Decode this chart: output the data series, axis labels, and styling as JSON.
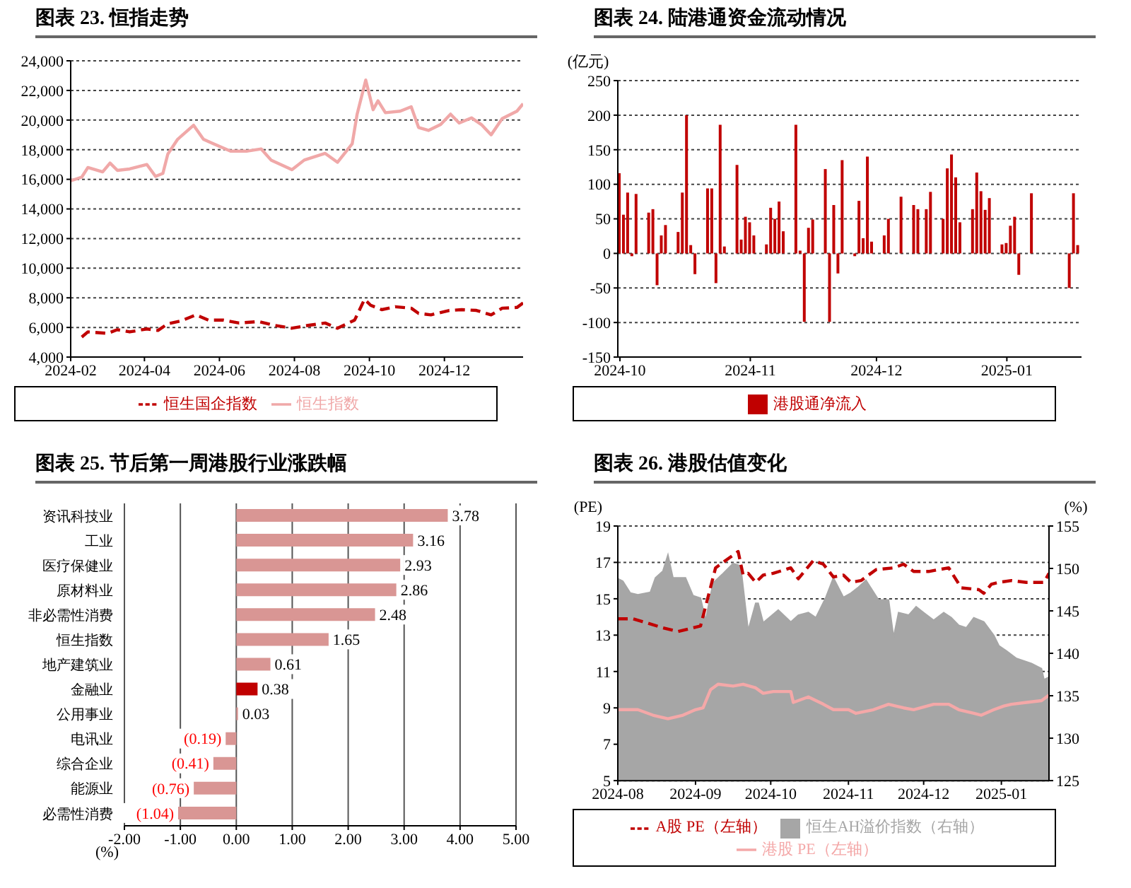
{
  "chart_data": [
    {
      "type": "line",
      "title": "图表 23. 恒指走势",
      "xlim": [
        "2024-02-01",
        "2025-02-03"
      ],
      "xticks": [
        {
          "value": "2024-02-01",
          "label": "2024-02"
        },
        {
          "value": "2024-04-01",
          "label": "2024-04"
        },
        {
          "value": "2024-06-01",
          "label": "2024-06"
        },
        {
          "value": "2024-08-01",
          "label": "2024-08"
        },
        {
          "value": "2024-10-01",
          "label": "2024-10"
        },
        {
          "value": "2024-12-01",
          "label": "2024-12"
        }
      ],
      "ylim": [
        4000,
        24000
      ],
      "yticks": [
        {
          "value": 4000,
          "label": "4,000"
        },
        {
          "value": 6000,
          "label": "6,000"
        },
        {
          "value": 8000,
          "label": "8,000"
        },
        {
          "value": 10000,
          "label": "10,000"
        },
        {
          "value": 12000,
          "label": "12,000"
        },
        {
          "value": 14000,
          "label": "14,000"
        },
        {
          "value": 16000,
          "label": "16,000"
        },
        {
          "value": 18000,
          "label": "18,000"
        },
        {
          "value": 20000,
          "label": "20,000"
        },
        {
          "value": 22000,
          "label": "22,000"
        },
        {
          "value": 24000,
          "label": "24,000"
        }
      ],
      "grid": "y",
      "legend": "bottom",
      "marker": "none",
      "series": [
        {
          "name": "恒生国企指数",
          "color": "#c00000",
          "line_style": "dashed",
          "x": [
            "2024-02-10",
            "2024-02-15",
            "2024-03-02",
            "2024-03-10",
            "2024-03-20",
            "2024-04-03",
            "2024-04-12",
            "2024-04-20",
            "2024-05-01",
            "2024-05-13",
            "2024-05-23",
            "2024-06-04",
            "2024-06-17",
            "2024-07-03",
            "2024-07-15",
            "2024-07-30",
            "2024-08-13",
            "2024-08-26",
            "2024-09-05",
            "2024-09-19",
            "2024-09-27",
            "2024-10-02",
            "2024-10-11",
            "2024-10-22",
            "2024-11-04",
            "2024-11-10",
            "2024-11-20",
            "2024-12-05",
            "2024-12-15",
            "2024-12-27",
            "2025-01-08",
            "2025-01-17",
            "2025-01-29",
            "2025-02-03"
          ],
          "values": [
            5350,
            5700,
            5600,
            5850,
            5700,
            5900,
            5800,
            6250,
            6450,
            6850,
            6500,
            6500,
            6300,
            6400,
            6150,
            5950,
            6150,
            6300,
            5950,
            6500,
            7900,
            7500,
            7200,
            7400,
            7300,
            6950,
            6850,
            7150,
            7200,
            7150,
            6850,
            7300,
            7350,
            7650
          ]
        },
        {
          "name": "恒生指数",
          "color": "#f0a8a8",
          "line_style": "solid",
          "x": [
            "2024-02-01",
            "2024-02-10",
            "2024-02-15",
            "2024-02-27",
            "2024-03-04",
            "2024-03-10",
            "2024-03-20",
            "2024-04-03",
            "2024-04-10",
            "2024-04-16",
            "2024-04-20",
            "2024-04-28",
            "2024-05-11",
            "2024-05-19",
            "2024-05-27",
            "2024-06-10",
            "2024-06-23",
            "2024-07-05",
            "2024-07-13",
            "2024-07-30",
            "2024-08-09",
            "2024-08-26",
            "2024-09-05",
            "2024-09-17",
            "2024-09-21",
            "2024-09-28",
            "2024-10-04",
            "2024-10-08",
            "2024-10-14",
            "2024-10-26",
            "2024-11-04",
            "2024-11-10",
            "2024-11-18",
            "2024-11-28",
            "2024-12-06",
            "2024-12-13",
            "2024-12-23",
            "2024-12-31",
            "2025-01-08",
            "2025-01-17",
            "2025-01-29",
            "2025-02-03"
          ],
          "values": [
            15900,
            16150,
            16800,
            16500,
            17100,
            16600,
            16700,
            17000,
            16200,
            16400,
            17700,
            18700,
            19650,
            18700,
            18400,
            17900,
            17900,
            18050,
            17300,
            16650,
            17300,
            17750,
            17150,
            18400,
            20400,
            22700,
            20700,
            21300,
            20500,
            20600,
            20900,
            19500,
            19300,
            19700,
            20400,
            19800,
            20150,
            19700,
            19000,
            20100,
            20600,
            21100
          ]
        }
      ]
    },
    {
      "type": "bar",
      "title": "图表 24. 陆港通资金流动情况",
      "ylabel": "(亿元)",
      "xlim": [
        "2024-09-30T12:00",
        "2025-01-18T18:00"
      ],
      "xticks": [
        {
          "value": "2024-10-01",
          "label": "2024-10"
        },
        {
          "value": "2024-11-01",
          "label": "2024-11"
        },
        {
          "value": "2024-12-01",
          "label": "2024-12"
        },
        {
          "value": "2025-01-01",
          "label": "2025-01"
        }
      ],
      "ylim": [
        -150,
        250
      ],
      "yticks": [
        -150,
        -100,
        -50,
        0,
        50,
        100,
        150,
        200,
        250
      ],
      "grid": "y",
      "legend": "bottom",
      "x": [
        "2024-10-01",
        "2024-10-02",
        "2024-10-03",
        "2024-10-04",
        "2024-10-05",
        "2024-10-08",
        "2024-10-09",
        "2024-10-10",
        "2024-10-11",
        "2024-10-12",
        "2024-10-15",
        "2024-10-16",
        "2024-10-17",
        "2024-10-18",
        "2024-10-19",
        "2024-10-22",
        "2024-10-23",
        "2024-10-24",
        "2024-10-25",
        "2024-10-26",
        "2024-10-29",
        "2024-10-30",
        "2024-10-31",
        "2024-11-01",
        "2024-11-02",
        "2024-11-05",
        "2024-11-06",
        "2024-11-07",
        "2024-11-08",
        "2024-11-09",
        "2024-11-12",
        "2024-11-13",
        "2024-11-14",
        "2024-11-15",
        "2024-11-16",
        "2024-11-19",
        "2024-11-20",
        "2024-11-21",
        "2024-11-22",
        "2024-11-23",
        "2024-11-26",
        "2024-11-27",
        "2024-11-28",
        "2024-11-29",
        "2024-11-30",
        "2024-12-03",
        "2024-12-04",
        "2024-12-07",
        "2024-12-10",
        "2024-12-11",
        "2024-12-13",
        "2024-12-14",
        "2024-12-17",
        "2024-12-18",
        "2024-12-19",
        "2024-12-20",
        "2024-12-21",
        "2024-12-24",
        "2024-12-25",
        "2024-12-26",
        "2024-12-27",
        "2024-12-28",
        "2024-12-31",
        "2025-01-01",
        "2025-01-02",
        "2025-01-03",
        "2025-01-04",
        "2025-01-07",
        "2025-01-16",
        "2025-01-17",
        "2025-01-18"
      ],
      "series": [
        {
          "name": "港股通净流入",
          "color": "#c00000",
          "values": [
            116,
            56,
            88,
            -4,
            86,
            59,
            64,
            -46,
            26,
            41,
            31,
            88,
            200,
            12,
            -30,
            94,
            94,
            -43,
            186,
            10,
            128,
            20,
            53,
            45,
            26,
            13,
            66,
            50,
            75,
            32,
            186,
            4,
            -99,
            37,
            49,
            122,
            -99,
            70,
            -29,
            135,
            -4,
            76,
            22,
            140,
            17,
            26,
            50,
            82,
            70,
            64,
            64,
            89,
            50,
            123,
            143,
            110,
            45,
            64,
            117,
            90,
            63,
            80,
            13,
            15,
            40,
            53,
            -31,
            87,
            -50,
            87,
            12
          ]
        }
      ]
    },
    {
      "type": "bar",
      "orientation": "horizontal",
      "title": "图表 25. 节后第一周港股行业涨跌幅",
      "xlabel": "(%)",
      "xlim": [
        -2,
        5
      ],
      "xticks": [
        {
          "value": -2,
          "label": "-2.00"
        },
        {
          "value": -1,
          "label": "-1.00"
        },
        {
          "value": 0,
          "label": "0.00"
        },
        {
          "value": 1,
          "label": "1.00"
        },
        {
          "value": 2,
          "label": "2.00"
        },
        {
          "value": 3,
          "label": "3.00"
        },
        {
          "value": 4,
          "label": "4.00"
        },
        {
          "value": 5,
          "label": "5.00"
        }
      ],
      "grid": "x",
      "categories": [
        "资讯科技业",
        "工业",
        "医疗保健业",
        "原材料业",
        "非必需性消费",
        "恒生指数",
        "地产建筑业",
        "金融业",
        "公用事业",
        "电讯业",
        "综合企业",
        "能源业",
        "必需性消费"
      ],
      "values": [
        3.78,
        3.16,
        2.93,
        2.86,
        2.48,
        1.65,
        0.61,
        0.38,
        0.03,
        -0.19,
        -0.41,
        -0.76,
        -1.04
      ],
      "value_labels": [
        "3.78",
        "3.16",
        "2.93",
        "2.86",
        "2.48",
        "1.65",
        "0.61",
        "0.38",
        "0.03",
        "(0.19)",
        "(0.41)",
        "(0.76)",
        "(1.04)"
      ],
      "colors": [
        "#d99694",
        "#d99694",
        "#d99694",
        "#d99694",
        "#d99694",
        "#d99694",
        "#d99694",
        "#c00000",
        "#d99694",
        "#d99694",
        "#d99694",
        "#d99694",
        "#d99694"
      ]
    },
    {
      "type": "line",
      "title": "图表 26. 港股估值变化",
      "ylabel": "(PE)",
      "y2label": "(%)",
      "xlim": [
        "2024-08-01",
        "2025-01-20"
      ],
      "xticks": [
        {
          "value": "2024-08-01",
          "label": "2024-08"
        },
        {
          "value": "2024-09-01",
          "label": "2024-09"
        },
        {
          "value": "2024-10-01",
          "label": "2024-10"
        },
        {
          "value": "2024-11-01",
          "label": "2024-11"
        },
        {
          "value": "2024-12-01",
          "label": "2024-12"
        },
        {
          "value": "2025-01-01",
          "label": "2025-01"
        }
      ],
      "ylim": [
        5,
        19
      ],
      "yticks": [
        5,
        7,
        9,
        11,
        13,
        15,
        17,
        19
      ],
      "y2lim": [
        125,
        155
      ],
      "y2ticks": [
        125,
        130,
        135,
        140,
        145,
        150,
        155
      ],
      "grid": "y",
      "legend": "bottom",
      "marker": "none",
      "series": [
        {
          "name": "恒生AH溢价指数（右轴）",
          "type": "area",
          "axis": "y2",
          "color": "#a6a6a6",
          "x": [
            "2024-08-01",
            "2024-08-03",
            "2024-08-06",
            "2024-08-09",
            "2024-08-14",
            "2024-08-16",
            "2024-08-19",
            "2024-08-21",
            "2024-08-23",
            "2024-08-28",
            "2024-08-31",
            "2024-09-03",
            "2024-09-05",
            "2024-09-08",
            "2024-09-12",
            "2024-09-16",
            "2024-09-19",
            "2024-09-22",
            "2024-09-25",
            "2024-09-26",
            "2024-09-28",
            "2024-10-04",
            "2024-10-09",
            "2024-10-12",
            "2024-10-16",
            "2024-10-19",
            "2024-10-23",
            "2024-10-26",
            "2024-10-30",
            "2024-11-02",
            "2024-11-05",
            "2024-11-08",
            "2024-11-13",
            "2024-11-17",
            "2024-11-19",
            "2024-11-21",
            "2024-11-25",
            "2024-11-28",
            "2024-12-01",
            "2024-12-05",
            "2024-12-09",
            "2024-12-12",
            "2024-12-15",
            "2024-12-18",
            "2024-12-21",
            "2024-12-25",
            "2024-12-29",
            "2024-12-31",
            "2025-01-03",
            "2025-01-07",
            "2025-01-13",
            "2025-01-17",
            "2025-01-18",
            "2025-01-20"
          ],
          "values": [
            148.8,
            148.5,
            147.1,
            146.9,
            147.2,
            148.9,
            149.7,
            151.6,
            148.9,
            148.9,
            146.8,
            146.5,
            143.9,
            148.3,
            149.4,
            150.6,
            150.3,
            142.7,
            145.9,
            145.9,
            143.6,
            145.1,
            143.7,
            144.5,
            144.8,
            144.2,
            146.6,
            148.9,
            146.6,
            147.1,
            147.8,
            148.6,
            146.3,
            146.3,
            141.9,
            144.8,
            144.5,
            145.5,
            144.8,
            143.9,
            144.8,
            144.2,
            143.3,
            143.0,
            144.2,
            143.7,
            142.1,
            140.9,
            140.3,
            139.4,
            138.8,
            138.2,
            136.9,
            137.2
          ]
        },
        {
          "name": "A股 PE（左轴）",
          "color": "#c00000",
          "line_style": "dashed",
          "x": [
            "2024-08-01",
            "2024-08-07",
            "2024-08-12",
            "2024-08-19",
            "2024-08-25",
            "2024-08-31",
            "2024-09-03",
            "2024-09-06",
            "2024-09-09",
            "2024-09-14",
            "2024-09-18",
            "2024-09-20",
            "2024-09-22",
            "2024-09-25",
            "2024-09-28",
            "2024-10-02",
            "2024-10-09",
            "2024-10-12",
            "2024-10-18",
            "2024-10-22",
            "2024-10-26",
            "2024-10-30",
            "2024-11-02",
            "2024-11-06",
            "2024-11-12",
            "2024-11-19",
            "2024-11-23",
            "2024-11-27",
            "2024-12-03",
            "2024-12-11",
            "2024-12-16",
            "2024-12-23",
            "2024-12-25",
            "2024-12-28",
            "2024-12-31",
            "2025-01-05",
            "2025-01-11",
            "2025-01-18",
            "2025-01-20"
          ],
          "values": [
            13.9,
            13.9,
            13.7,
            13.4,
            13.2,
            13.4,
            13.5,
            15.1,
            16.7,
            17.2,
            17.6,
            16.3,
            16.4,
            15.9,
            16.3,
            16.4,
            16.7,
            16.1,
            17.1,
            16.9,
            16.2,
            16.3,
            15.9,
            16.0,
            16.6,
            16.7,
            16.9,
            16.5,
            16.5,
            16.7,
            15.6,
            15.5,
            15.3,
            15.8,
            15.9,
            16.0,
            15.9,
            15.9,
            16.4
          ]
        },
        {
          "name": "港股 PE（左轴）",
          "color": "#f4a8a8",
          "line_style": "solid",
          "x": [
            "2024-08-01",
            "2024-08-05",
            "2024-08-09",
            "2024-08-15",
            "2024-08-21",
            "2024-08-27",
            "2024-09-01",
            "2024-09-04",
            "2024-09-07",
            "2024-09-10",
            "2024-09-16",
            "2024-09-20",
            "2024-09-25",
            "2024-09-28",
            "2024-10-02",
            "2024-10-09",
            "2024-10-10",
            "2024-10-16",
            "2024-10-22",
            "2024-10-26",
            "2024-11-01",
            "2024-11-04",
            "2024-11-11",
            "2024-11-17",
            "2024-11-23",
            "2024-11-27",
            "2024-12-05",
            "2024-12-11",
            "2024-12-15",
            "2024-12-21",
            "2024-12-24",
            "2024-12-29",
            "2025-01-02",
            "2025-01-05",
            "2025-01-11",
            "2025-01-17",
            "2025-01-20"
          ],
          "values": [
            8.9,
            8.9,
            8.9,
            8.6,
            8.4,
            8.6,
            8.9,
            9.0,
            10.0,
            10.3,
            10.2,
            10.3,
            10.1,
            9.8,
            9.9,
            9.9,
            9.3,
            9.6,
            9.2,
            8.9,
            8.9,
            8.7,
            8.9,
            9.2,
            9.0,
            8.9,
            9.2,
            9.2,
            8.9,
            8.7,
            8.6,
            8.9,
            9.1,
            9.2,
            9.3,
            9.4,
            9.7
          ]
        }
      ]
    }
  ]
}
